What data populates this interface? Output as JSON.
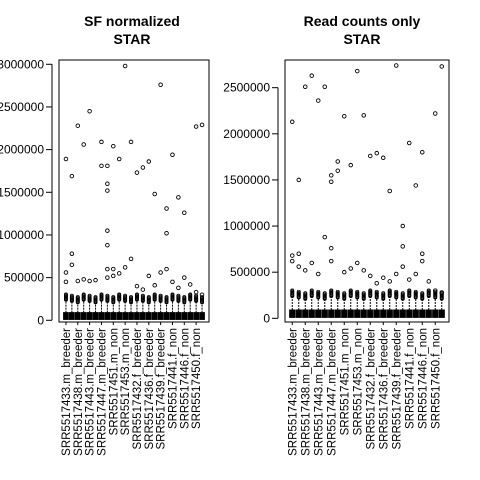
{
  "chart_data": [
    {
      "type": "boxplot",
      "title_lines": [
        "SF normalized",
        "STAR"
      ],
      "ylim": [
        -20000,
        3050000
      ],
      "y_ticks": [
        0,
        500000,
        1000000,
        1500000,
        2000000,
        2500000,
        3000000
      ],
      "y_tick_labels": [
        "0",
        "500000",
        "1000000",
        "1500000",
        "2000000",
        "2500000",
        "3000000"
      ],
      "categories": [
        "SRR5517433.m_breeder",
        "SRR5517438.m_breeder",
        "SRR5517443.m_breeder",
        "SRR5517447.m_breeder",
        "SRR5517451.m_non",
        "SRR5517453.m_non",
        "SRR5517432.f_breeder",
        "SRR5517436.f_breeder",
        "SRR5517439.f_breeder",
        "SRR5517441.f_non",
        "SRR5517446.f_non",
        "SRR5517450.f_non"
      ],
      "visible_category_labels": [
        "SRR5517433.m_breeder",
        "SRR5517438.m_breeder",
        "SRR5517443.m_breeder",
        "SRR5517447.m_breeder",
        "SRR5517451.m_non",
        "SRR5517453.m_non",
        "SRR5517432.f_breeder",
        "SRR5517436.f_breeder",
        "SRR5517439.f_breeder",
        "SRR5517441.f_non",
        "SRR5517446.f_non",
        "SRR5517450.f_non"
      ],
      "n_boxes": 24,
      "box_upper_whisker": 230000,
      "high_outliers": [
        {
          "box": 0,
          "values": [
            1890000,
            560000,
            450000
          ]
        },
        {
          "box": 1,
          "values": [
            1690000,
            780000,
            650000
          ]
        },
        {
          "box": 2,
          "values": [
            2280000,
            460000
          ]
        },
        {
          "box": 3,
          "values": [
            2060000,
            480000
          ]
        },
        {
          "box": 4,
          "values": [
            2450000,
            460000
          ]
        },
        {
          "box": 5,
          "values": [
            470000
          ]
        },
        {
          "box": 6,
          "values": [
            2090000,
            1810000
          ]
        },
        {
          "box": 7,
          "values": [
            1810000,
            1600000,
            1520000,
            1050000,
            880000,
            600000,
            500000
          ]
        },
        {
          "box": 8,
          "values": [
            2040000,
            600000,
            520000
          ]
        },
        {
          "box": 9,
          "values": [
            1890000,
            550000
          ]
        },
        {
          "box": 10,
          "values": [
            2980000,
            620000
          ]
        },
        {
          "box": 11,
          "values": [
            2090000,
            720000
          ]
        },
        {
          "box": 12,
          "values": [
            1730000,
            400000
          ]
        },
        {
          "box": 13,
          "values": [
            1790000,
            360000
          ]
        },
        {
          "box": 14,
          "values": [
            1860000,
            520000
          ]
        },
        {
          "box": 15,
          "values": [
            1480000,
            410000
          ]
        },
        {
          "box": 16,
          "values": [
            2760000,
            560000
          ]
        },
        {
          "box": 17,
          "values": [
            1310000,
            1020000,
            600000
          ]
        },
        {
          "box": 18,
          "values": [
            1940000,
            450000
          ]
        },
        {
          "box": 19,
          "values": [
            1440000,
            380000
          ]
        },
        {
          "box": 20,
          "values": [
            1260000,
            500000
          ]
        },
        {
          "box": 21,
          "values": [
            420000
          ]
        },
        {
          "box": 22,
          "values": [
            2270000,
            330000
          ]
        },
        {
          "box": 23,
          "values": [
            2290000,
            300000
          ]
        }
      ]
    },
    {
      "type": "boxplot",
      "title_lines": [
        "Read counts only",
        "STAR"
      ],
      "ylim": [
        -40000,
        2800000
      ],
      "y_ticks": [
        0,
        500000,
        1000000,
        1500000,
        2000000,
        2500000
      ],
      "y_tick_labels": [
        "0",
        "500000",
        "1000000",
        "1500000",
        "2000000",
        "2500000"
      ],
      "categories": [
        "SRR5517433.m_breeder",
        "SRR5517438.m_breeder",
        "SRR5517443.m_breeder",
        "SRR5517447.m_breeder",
        "SRR5517451.m_non",
        "SRR5517453.m_non",
        "SRR5517432.f_breeder",
        "SRR5517436.f_breeder",
        "SRR5517439.f_breeder",
        "SRR5517441.f_non",
        "SRR5517446.f_non",
        "SRR5517450.f_non"
      ],
      "visible_category_labels": [
        "SRR5517433.m_breeder",
        "SRR5517438.m_breeder",
        "SRR5517443.m_breeder",
        "SRR5517447.m_breeder",
        "SRR5517451.m_non",
        "SRR5517453.m_non",
        "SRR5517432.f_breeder",
        "SRR5517436.f_breeder",
        "SRR5517439.f_breeder",
        "SRR5517441.f_non",
        "SRR5517446.f_non",
        "SRR5517450.f_non"
      ],
      "n_boxes": 24,
      "box_upper_whisker": 230000,
      "high_outliers": [
        {
          "box": 0,
          "values": [
            2130000,
            680000,
            620000
          ]
        },
        {
          "box": 1,
          "values": [
            1500000,
            700000,
            560000
          ]
        },
        {
          "box": 2,
          "values": [
            2510000,
            520000
          ]
        },
        {
          "box": 3,
          "values": [
            2630000,
            600000
          ]
        },
        {
          "box": 4,
          "values": [
            2360000,
            480000
          ]
        },
        {
          "box": 5,
          "values": [
            2510000,
            880000
          ]
        },
        {
          "box": 6,
          "values": [
            1550000,
            1480000,
            760000,
            620000
          ]
        },
        {
          "box": 7,
          "values": [
            1700000,
            1600000
          ]
        },
        {
          "box": 8,
          "values": [
            2190000,
            500000
          ]
        },
        {
          "box": 9,
          "values": [
            1660000,
            540000
          ]
        },
        {
          "box": 10,
          "values": [
            2680000,
            600000
          ]
        },
        {
          "box": 11,
          "values": [
            2200000,
            520000
          ]
        },
        {
          "box": 12,
          "values": [
            1760000,
            460000
          ]
        },
        {
          "box": 13,
          "values": [
            1790000,
            380000
          ]
        },
        {
          "box": 14,
          "values": [
            1740000,
            440000
          ]
        },
        {
          "box": 15,
          "values": [
            1380000,
            400000
          ]
        },
        {
          "box": 16,
          "values": [
            2740000,
            480000
          ]
        },
        {
          "box": 17,
          "values": [
            1000000,
            780000,
            560000
          ]
        },
        {
          "box": 18,
          "values": [
            1900000,
            420000
          ]
        },
        {
          "box": 19,
          "values": [
            1440000,
            480000
          ]
        },
        {
          "box": 20,
          "values": [
            1800000,
            700000,
            620000
          ]
        },
        {
          "box": 21,
          "values": [
            400000
          ]
        },
        {
          "box": 22,
          "values": [
            2220000,
            300000
          ]
        },
        {
          "box": 23,
          "values": [
            2730000,
            280000
          ]
        }
      ]
    }
  ]
}
